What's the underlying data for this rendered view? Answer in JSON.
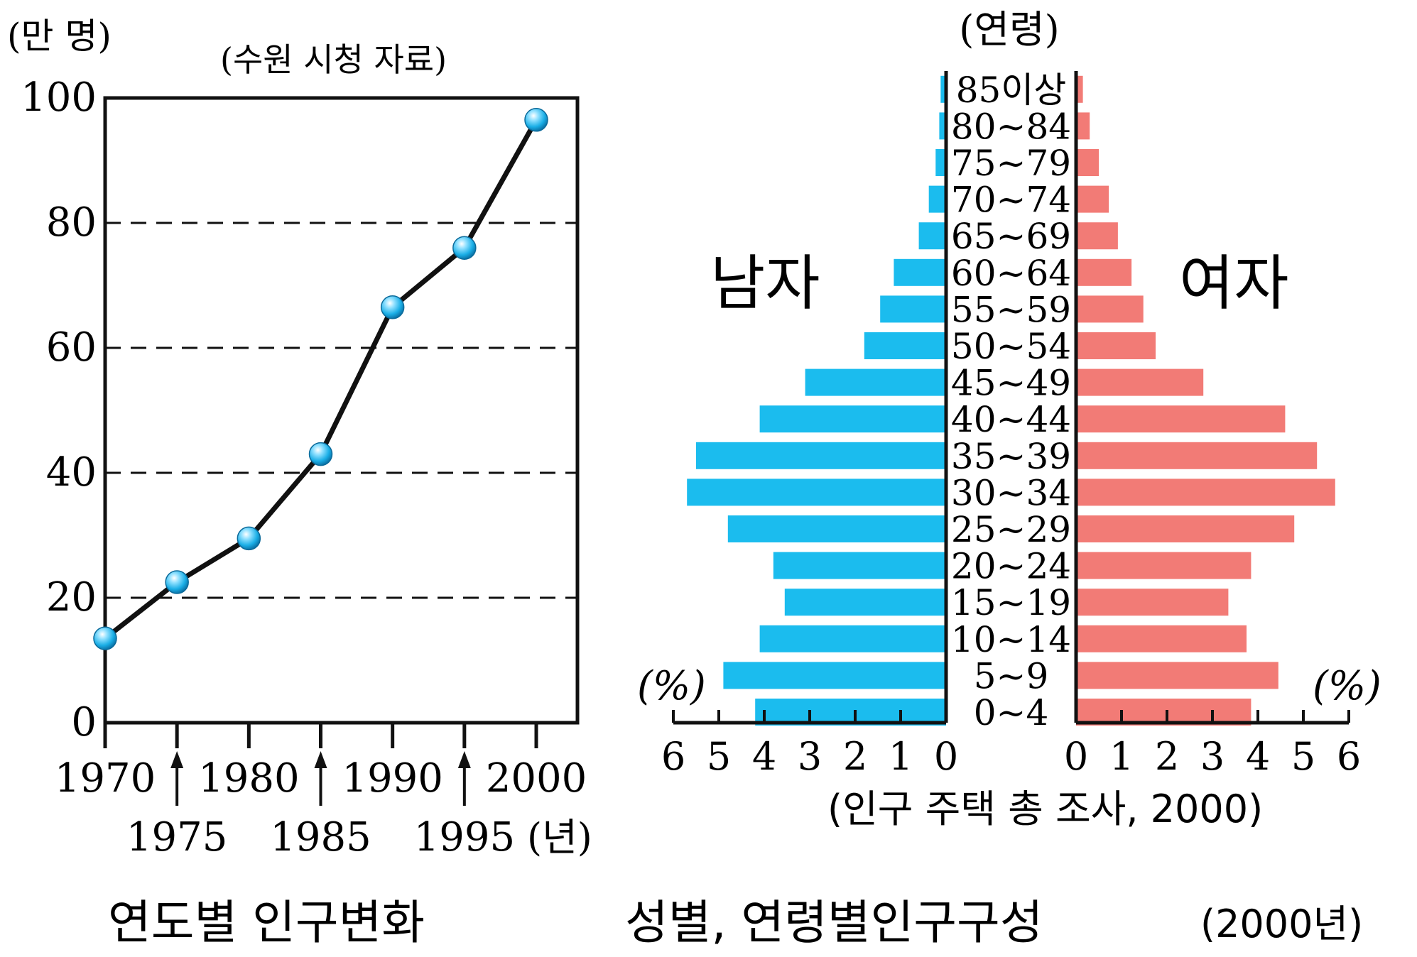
{
  "chart_data": [
    {
      "type": "line",
      "unit_label": "(만 명)",
      "source": "(수원 시청 자료)",
      "x_unit": "(년)",
      "caption": "연도별 인구변화",
      "x": [
        1970,
        1975,
        1980,
        1985,
        1990,
        1995,
        2000
      ],
      "x_ticks_top": [
        "1970",
        "1980",
        "1990",
        "2000"
      ],
      "x_ticks_bottom": [
        "1975",
        "1985",
        "1995"
      ],
      "values": [
        13.5,
        22.5,
        29.5,
        43,
        66.5,
        76,
        96.5
      ],
      "y_ticks": [
        "0",
        "20",
        "40",
        "60",
        "80",
        "100"
      ],
      "ylim": [
        0,
        100
      ],
      "grid": "dashed at 20, 40, 60, 80"
    },
    {
      "type": "bar",
      "subtype": "population-pyramid",
      "age_header": "(연령)",
      "caption": "성별, 연령별인구구성",
      "caption_year": "(2000년)",
      "source": "(인구 주택 총 조사, 2000)",
      "unit_left": "(%)",
      "unit_right": "(%)",
      "x_ticks_left": [
        "6",
        "5",
        "4",
        "3",
        "2",
        "1",
        "0"
      ],
      "x_ticks_right": [
        "0",
        "1",
        "2",
        "3",
        "4",
        "5",
        "6"
      ],
      "xlim": [
        0,
        6
      ],
      "categories": [
        "85이상",
        "80~84",
        "75~79",
        "70~74",
        "65~69",
        "60~64",
        "55~59",
        "50~54",
        "45~49",
        "40~44",
        "35~39",
        "30~34",
        "25~29",
        "20~24",
        "15~19",
        "10~14",
        "5~9",
        "0~4"
      ],
      "series": [
        {
          "name": "남자",
          "color": "#1bbcee",
          "values": [
            0.12,
            0.15,
            0.23,
            0.38,
            0.6,
            1.15,
            1.45,
            1.8,
            3.1,
            4.1,
            5.5,
            5.7,
            4.8,
            3.8,
            3.55,
            4.1,
            4.9,
            4.2
          ]
        },
        {
          "name": "여자",
          "color": "#f27b76",
          "values": [
            0.15,
            0.3,
            0.5,
            0.72,
            0.92,
            1.22,
            1.48,
            1.75,
            2.8,
            4.6,
            5.3,
            5.7,
            4.8,
            3.85,
            3.35,
            3.75,
            4.45,
            3.85
          ]
        }
      ]
    }
  ]
}
